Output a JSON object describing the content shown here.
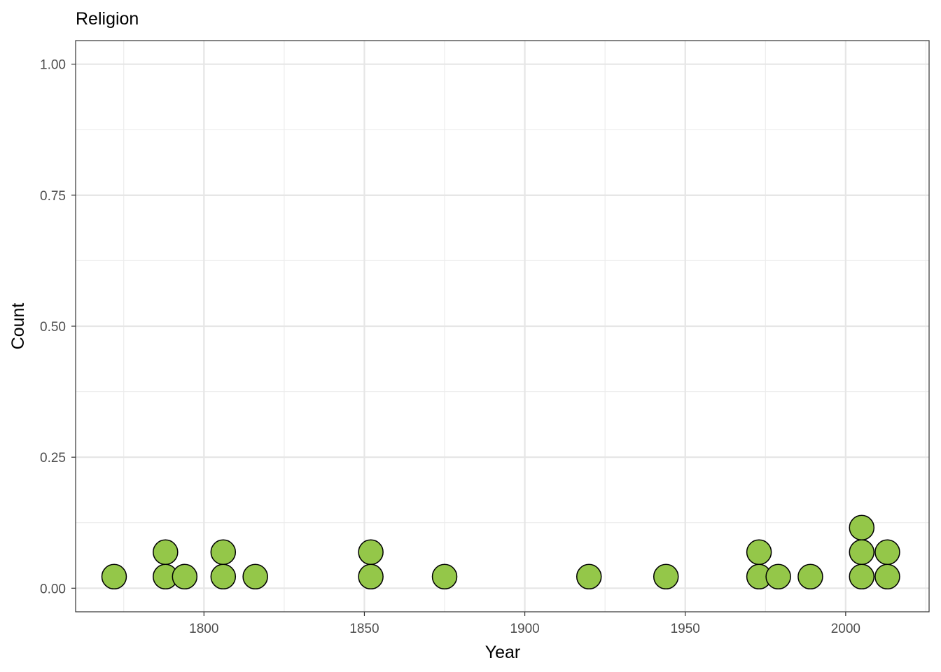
{
  "chart_data": {
    "type": "scatter",
    "subtype": "dotplot",
    "title": "Religion",
    "xlabel": "Year",
    "ylabel": "Count",
    "xlim": [
      1760,
      2026
    ],
    "ylim": [
      -0.045,
      1.045
    ],
    "x_ticks": [
      1800,
      1850,
      1900,
      1950,
      2000
    ],
    "x_tick_labels": [
      "1800",
      "1850",
      "1900",
      "1950",
      "2000"
    ],
    "y_ticks": [
      0.0,
      0.25,
      0.5,
      0.75,
      1.0
    ],
    "y_tick_labels": [
      "0.00",
      "0.25",
      "0.50",
      "0.75",
      "1.00"
    ],
    "grid": true,
    "marker_fill": "#94c749",
    "marker_stroke": "#000000",
    "points": [
      {
        "year": 1772,
        "stack": 1
      },
      {
        "year": 1788,
        "stack": 1
      },
      {
        "year": 1788,
        "stack": 2
      },
      {
        "year": 1794,
        "stack": 1
      },
      {
        "year": 1806,
        "stack": 1
      },
      {
        "year": 1806,
        "stack": 2
      },
      {
        "year": 1816,
        "stack": 1
      },
      {
        "year": 1852,
        "stack": 1
      },
      {
        "year": 1852,
        "stack": 2
      },
      {
        "year": 1875,
        "stack": 1
      },
      {
        "year": 1920,
        "stack": 1
      },
      {
        "year": 1944,
        "stack": 1
      },
      {
        "year": 1973,
        "stack": 1
      },
      {
        "year": 1973,
        "stack": 2
      },
      {
        "year": 1979,
        "stack": 1
      },
      {
        "year": 1989,
        "stack": 1
      },
      {
        "year": 2005,
        "stack": 1
      },
      {
        "year": 2005,
        "stack": 2
      },
      {
        "year": 2005,
        "stack": 3
      },
      {
        "year": 2013,
        "stack": 1
      },
      {
        "year": 2013,
        "stack": 2
      }
    ]
  }
}
